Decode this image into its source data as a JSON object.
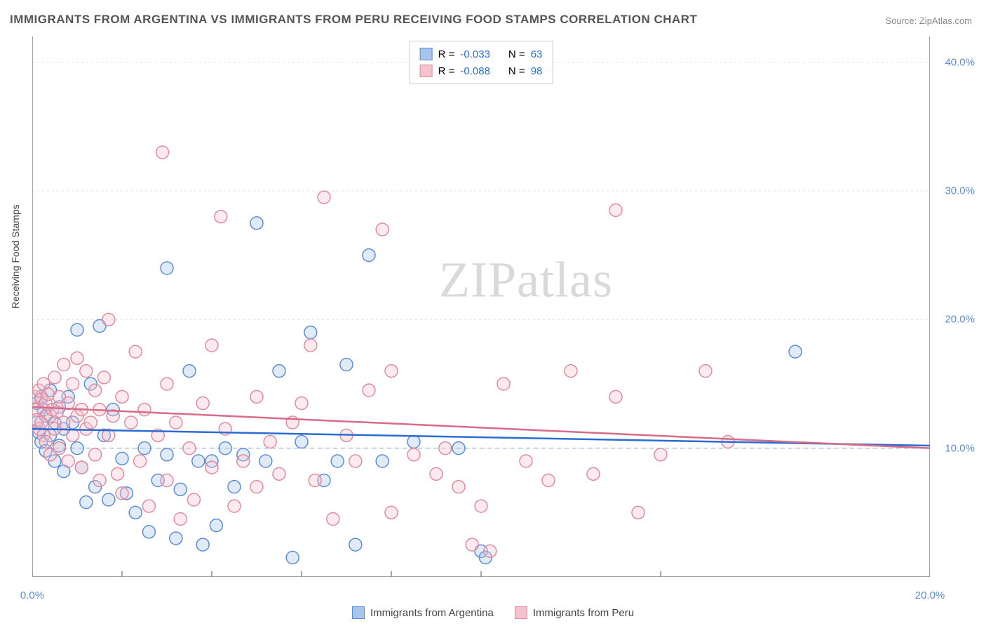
{
  "title": "IMMIGRANTS FROM ARGENTINA VS IMMIGRANTS FROM PERU RECEIVING FOOD STAMPS CORRELATION CHART",
  "source": "Source: ZipAtlas.com",
  "ylabel": "Receiving Food Stamps",
  "watermark_a": "ZIP",
  "watermark_b": "atlas",
  "chart": {
    "type": "scatter",
    "xlim": [
      0,
      20
    ],
    "ylim": [
      0,
      42
    ],
    "x_ticks": [
      0,
      2,
      4,
      6,
      8,
      10,
      14,
      20
    ],
    "x_tick_labels": {
      "0": "0.0%",
      "20": "20.0%"
    },
    "y_ticks": [
      10,
      20,
      30,
      40
    ],
    "y_tick_labels": {
      "10": "10.0%",
      "20": "20.0%",
      "30": "30.0%",
      "40": "40.0%"
    },
    "reference_line_y": 10,
    "reference_line_color": "#b0c4de",
    "grid_color": "#e0e0e0",
    "background_color": "#ffffff",
    "axis_color": "#888888",
    "marker_radius": 9,
    "marker_stroke_width": 1.5,
    "marker_fill_opacity": 0.35,
    "trend_line_width": 2.5,
    "title_fontsize": 17,
    "title_color": "#555555",
    "label_fontsize": 14,
    "tick_fontsize": 15,
    "tick_color": "#5b8dd6"
  },
  "series": [
    {
      "id": "argentina",
      "label": "Immigrants from Argentina",
      "fill_color": "#a9c5eb",
      "stroke_color": "#5b8dd6",
      "trend_color": "#2b6cd4",
      "R": "-0.033",
      "N": "63",
      "trend": {
        "x1": 0,
        "y1": 11.5,
        "x2": 20,
        "y2": 10.2
      },
      "points": [
        [
          0.1,
          13.5
        ],
        [
          0.1,
          12.0
        ],
        [
          0.15,
          11.2
        ],
        [
          0.2,
          14.0
        ],
        [
          0.2,
          10.5
        ],
        [
          0.25,
          13.0
        ],
        [
          0.3,
          12.5
        ],
        [
          0.3,
          9.8
        ],
        [
          0.4,
          14.5
        ],
        [
          0.4,
          11.0
        ],
        [
          0.5,
          12.0
        ],
        [
          0.5,
          9.0
        ],
        [
          0.6,
          13.2
        ],
        [
          0.6,
          10.2
        ],
        [
          0.7,
          11.5
        ],
        [
          0.7,
          8.2
        ],
        [
          0.8,
          14.0
        ],
        [
          0.9,
          12.0
        ],
        [
          1.0,
          19.2
        ],
        [
          1.0,
          10.0
        ],
        [
          1.1,
          8.5
        ],
        [
          1.2,
          5.8
        ],
        [
          1.3,
          15.0
        ],
        [
          1.4,
          7.0
        ],
        [
          1.5,
          19.5
        ],
        [
          1.6,
          11.0
        ],
        [
          1.7,
          6.0
        ],
        [
          1.8,
          13.0
        ],
        [
          2.0,
          9.2
        ],
        [
          2.1,
          6.5
        ],
        [
          2.3,
          5.0
        ],
        [
          2.5,
          10.0
        ],
        [
          2.6,
          3.5
        ],
        [
          2.8,
          7.5
        ],
        [
          3.0,
          24.0
        ],
        [
          3.0,
          9.5
        ],
        [
          3.2,
          3.0
        ],
        [
          3.3,
          6.8
        ],
        [
          3.5,
          16.0
        ],
        [
          3.7,
          9.0
        ],
        [
          3.8,
          2.5
        ],
        [
          4.0,
          9.0
        ],
        [
          4.1,
          4.0
        ],
        [
          4.3,
          10.0
        ],
        [
          4.5,
          7.0
        ],
        [
          4.7,
          9.5
        ],
        [
          5.0,
          27.5
        ],
        [
          5.2,
          9.0
        ],
        [
          5.5,
          16.0
        ],
        [
          5.8,
          1.5
        ],
        [
          6.0,
          10.5
        ],
        [
          6.2,
          19.0
        ],
        [
          6.5,
          7.5
        ],
        [
          6.8,
          9.0
        ],
        [
          7.0,
          16.5
        ],
        [
          7.2,
          2.5
        ],
        [
          7.5,
          25.0
        ],
        [
          7.8,
          9.0
        ],
        [
          8.5,
          10.5
        ],
        [
          9.5,
          10.0
        ],
        [
          10.0,
          2.0
        ],
        [
          10.1,
          1.5
        ],
        [
          17.0,
          17.5
        ]
      ]
    },
    {
      "id": "peru",
      "label": "Immigrants from Peru",
      "fill_color": "#f5c2cd",
      "stroke_color": "#e08ca0",
      "trend_color": "#d86b87",
      "R": "-0.088",
      "N": "98",
      "trend": {
        "x1": 0,
        "y1": 13.2,
        "x2": 20,
        "y2": 10.0
      },
      "points": [
        [
          0.05,
          14.0
        ],
        [
          0.1,
          13.0
        ],
        [
          0.1,
          12.2
        ],
        [
          0.15,
          14.5
        ],
        [
          0.15,
          11.5
        ],
        [
          0.2,
          13.8
        ],
        [
          0.2,
          12.0
        ],
        [
          0.25,
          15.0
        ],
        [
          0.25,
          11.0
        ],
        [
          0.3,
          13.5
        ],
        [
          0.3,
          10.5
        ],
        [
          0.35,
          14.2
        ],
        [
          0.4,
          12.5
        ],
        [
          0.4,
          9.5
        ],
        [
          0.45,
          13.0
        ],
        [
          0.5,
          15.5
        ],
        [
          0.5,
          11.5
        ],
        [
          0.55,
          12.8
        ],
        [
          0.6,
          14.0
        ],
        [
          0.6,
          10.0
        ],
        [
          0.7,
          16.5
        ],
        [
          0.7,
          12.0
        ],
        [
          0.8,
          13.5
        ],
        [
          0.8,
          9.0
        ],
        [
          0.9,
          15.0
        ],
        [
          0.9,
          11.0
        ],
        [
          1.0,
          17.0
        ],
        [
          1.0,
          12.5
        ],
        [
          1.1,
          13.0
        ],
        [
          1.1,
          8.5
        ],
        [
          1.2,
          16.0
        ],
        [
          1.2,
          11.5
        ],
        [
          1.3,
          12.0
        ],
        [
          1.4,
          14.5
        ],
        [
          1.4,
          9.5
        ],
        [
          1.5,
          13.0
        ],
        [
          1.5,
          7.5
        ],
        [
          1.6,
          15.5
        ],
        [
          1.7,
          20.0
        ],
        [
          1.7,
          11.0
        ],
        [
          1.8,
          12.5
        ],
        [
          1.9,
          8.0
        ],
        [
          2.0,
          14.0
        ],
        [
          2.0,
          6.5
        ],
        [
          2.2,
          12.0
        ],
        [
          2.3,
          17.5
        ],
        [
          2.4,
          9.0
        ],
        [
          2.5,
          13.0
        ],
        [
          2.6,
          5.5
        ],
        [
          2.8,
          11.0
        ],
        [
          2.9,
          33.0
        ],
        [
          3.0,
          15.0
        ],
        [
          3.0,
          7.5
        ],
        [
          3.2,
          12.0
        ],
        [
          3.3,
          4.5
        ],
        [
          3.5,
          10.0
        ],
        [
          3.6,
          6.0
        ],
        [
          3.8,
          13.5
        ],
        [
          4.0,
          18.0
        ],
        [
          4.0,
          8.5
        ],
        [
          4.2,
          28.0
        ],
        [
          4.3,
          11.5
        ],
        [
          4.5,
          5.5
        ],
        [
          4.7,
          9.0
        ],
        [
          5.0,
          14.0
        ],
        [
          5.0,
          7.0
        ],
        [
          5.3,
          10.5
        ],
        [
          5.5,
          8.0
        ],
        [
          5.8,
          12.0
        ],
        [
          6.0,
          13.5
        ],
        [
          6.2,
          18.0
        ],
        [
          6.3,
          7.5
        ],
        [
          6.5,
          29.5
        ],
        [
          6.7,
          4.5
        ],
        [
          7.0,
          11.0
        ],
        [
          7.2,
          9.0
        ],
        [
          7.5,
          14.5
        ],
        [
          7.8,
          27.0
        ],
        [
          8.0,
          5.0
        ],
        [
          8.0,
          16.0
        ],
        [
          8.5,
          9.5
        ],
        [
          9.0,
          8.0
        ],
        [
          9.2,
          10.0
        ],
        [
          9.5,
          7.0
        ],
        [
          9.8,
          2.5
        ],
        [
          10.0,
          5.5
        ],
        [
          10.2,
          2.0
        ],
        [
          10.5,
          15.0
        ],
        [
          11.0,
          9.0
        ],
        [
          11.5,
          7.5
        ],
        [
          12.0,
          16.0
        ],
        [
          12.5,
          8.0
        ],
        [
          13.0,
          14.0
        ],
        [
          13.0,
          28.5
        ],
        [
          13.5,
          5.0
        ],
        [
          14.0,
          9.5
        ],
        [
          15.0,
          16.0
        ],
        [
          15.5,
          10.5
        ]
      ]
    }
  ],
  "legend_top": {
    "r_label": "R =",
    "n_label": "N ="
  }
}
